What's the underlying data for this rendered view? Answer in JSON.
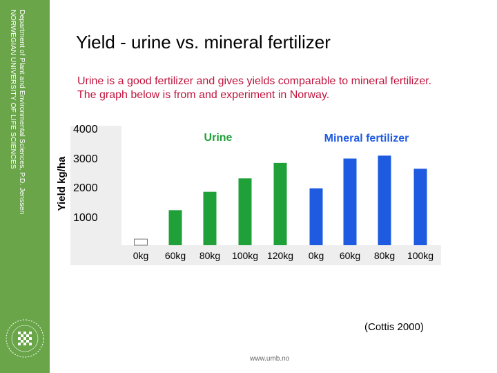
{
  "sidebar": {
    "lines": [
      "Department of Plant and Environmental Sciences, P.D. Jenssen",
      "NORWEGIAN UNIVERSITY OF LIFE SCIENCES"
    ]
  },
  "slide": {
    "title": "Yield - urine vs. mineral fertilizer",
    "subtitle_lines": [
      "Urine is a good fertilizer and gives yields comparable to mineral fertilizer.",
      "The graph below is from and experiment in Norway."
    ],
    "citation": "(Cottis 2000)",
    "url": "www.umb.no"
  },
  "colors": {
    "sidebar": "#6aa54a",
    "subtitle": "#c0143c",
    "urine": "#1fa038",
    "mineral": "#1e5be0",
    "control": "#ffffff"
  },
  "chart_data": {
    "type": "bar",
    "ylabel": "Yield kg/ha",
    "yticks": [
      4000,
      3000,
      2000,
      1000
    ],
    "ylim": [
      0,
      4000
    ],
    "group_labels": [
      "Urine",
      "Mineral fertilizer"
    ],
    "categories": [
      "0kg",
      "60kg",
      "80kg",
      "100kg",
      "120kg",
      "0kg",
      "60kg",
      "80kg",
      "100kg"
    ],
    "values": [
      210,
      1200,
      1830,
      2290,
      2820,
      1950,
      2970,
      3070,
      2620
    ],
    "groups": [
      "control",
      "urine",
      "urine",
      "urine",
      "urine",
      "mineral",
      "mineral",
      "mineral",
      "mineral"
    ]
  }
}
